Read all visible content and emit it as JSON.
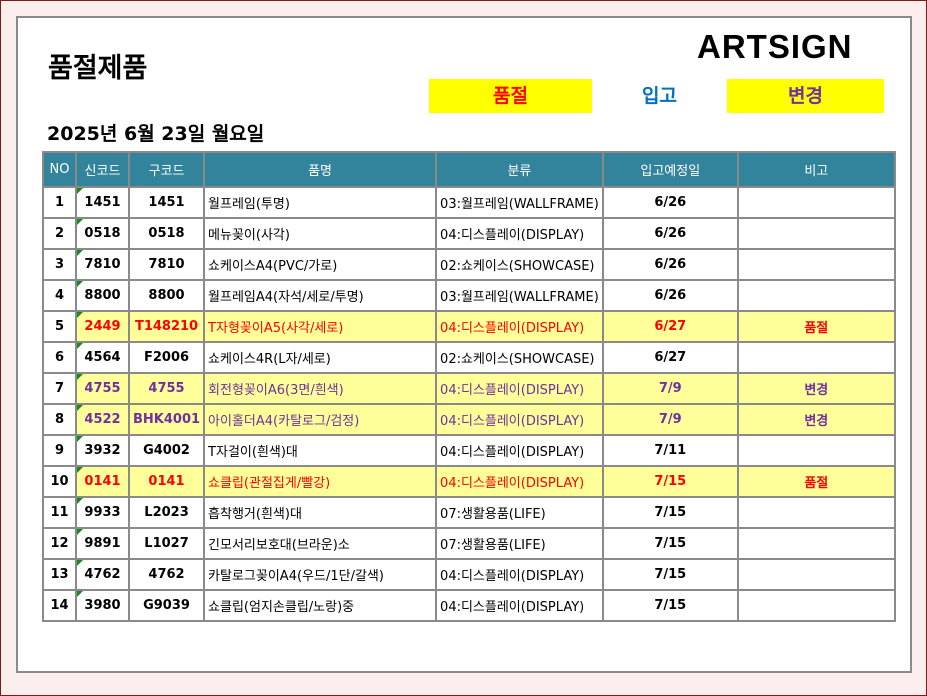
{
  "title": "품절제품",
  "logo": "ARTSIGN",
  "legend": [
    {
      "label": "품절",
      "color": "#ff0000",
      "bg": "#ffff00"
    },
    {
      "label": "입고",
      "color": "#0070c0",
      "bg": ""
    },
    {
      "label": "변경",
      "color": "#7030a0",
      "bg": "#ffff00"
    }
  ],
  "date": "2025년 6월 23일 월요일",
  "columns": [
    "NO",
    "신코드",
    "구코드",
    "품명",
    "분류",
    "입고예정일",
    "비고"
  ],
  "rows": [
    [
      "1",
      "1451",
      "1451",
      "월프레임(투명)",
      "03:월프레임(WALLFRAME)",
      "6/26",
      ""
    ],
    [
      "2",
      "0518",
      "0518",
      "메뉴꽂이(사각)",
      "04:디스플레이(DISPLAY)",
      "6/26",
      ""
    ],
    [
      "3",
      "7810",
      "7810",
      "쇼케이스A4(PVC/가로)",
      "02:쇼케이스(SHOWCASE)",
      "6/26",
      ""
    ],
    [
      "4",
      "8800",
      "8800",
      "월프레임A4(자석/세로/투명)",
      "03:월프레임(WALLFRAME)",
      "6/26",
      ""
    ],
    [
      "5",
      "2449",
      "T148210",
      "T자형꽂이A5(사각/세로)",
      "04:디스플레이(DISPLAY)",
      "6/27",
      "품절"
    ],
    [
      "6",
      "4564",
      "F2006",
      "쇼케이스4R(L자/세로)",
      "02:쇼케이스(SHOWCASE)",
      "6/27",
      ""
    ],
    [
      "7",
      "4755",
      "4755",
      "회전형꽂이A6(3면/흰색)",
      "04:디스플레이(DISPLAY)",
      "7/9",
      "변경"
    ],
    [
      "8",
      "4522",
      "BHK4001",
      "아이홀더A4(카탈로그/검정)",
      "04:디스플레이(DISPLAY)",
      "7/9",
      "변경"
    ],
    [
      "9",
      "3932",
      "G4002",
      "T자걸이(흰색)대",
      "04:디스플레이(DISPLAY)",
      "7/11",
      ""
    ],
    [
      "10",
      "0141",
      "0141",
      "쇼클립(관절집게/빨강)",
      "04:디스플레이(DISPLAY)",
      "7/15",
      "품절"
    ],
    [
      "11",
      "9933",
      "L2023",
      "흡착행거(흰색)대",
      "07:생활용품(LIFE)",
      "7/15",
      ""
    ],
    [
      "12",
      "9891",
      "L1027",
      "긴모서리보호대(브라운)소",
      "07:생활용품(LIFE)",
      "7/15",
      ""
    ],
    [
      "13",
      "4762",
      "4762",
      "카탈로그꽂이A4(우드/1단/갈색)",
      "04:디스플레이(DISPLAY)",
      "7/15",
      ""
    ],
    [
      "14",
      "3980",
      "G9039",
      "쇼클립(엄지손클립/노랑)중",
      "04:디스플레이(DISPLAY)",
      "7/15",
      ""
    ]
  ],
  "row_status": [
    "",
    "",
    "",
    "",
    "red",
    "",
    "pur",
    "pur",
    "",
    "red",
    "",
    "",
    "",
    ""
  ]
}
